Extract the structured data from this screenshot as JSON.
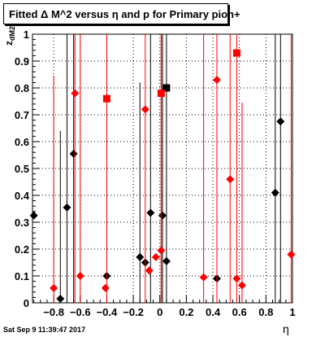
{
  "chart_data": {
    "type": "scatter",
    "title": "Fitted Δ M^2 versus η and p for Primary pion+",
    "xlabel": "η",
    "ylabel": "z_dM2",
    "xlim": [
      -0.96,
      1.0
    ],
    "ylim": [
      0,
      1
    ],
    "grid": true,
    "x_ticks": [
      "−0.8",
      "−0.6",
      "−0.4",
      "−0.2",
      "0",
      "0.2",
      "0.4",
      "0.6",
      "0.8",
      "1"
    ],
    "x_tick_values": [
      -0.8,
      -0.6,
      -0.4,
      -0.2,
      0,
      0.2,
      0.4,
      0.6,
      0.8,
      1
    ],
    "y_ticks": [
      "0",
      "0.1",
      "0.2",
      "0.3",
      "0.4",
      "0.5",
      "0.6",
      "0.7",
      "0.8",
      "0.9",
      "1"
    ],
    "y_tick_values": [
      0,
      0.1,
      0.2,
      0.3,
      0.4,
      0.5,
      0.6,
      0.7,
      0.8,
      0.9,
      1
    ],
    "series": [
      {
        "color": "#000000",
        "points": [
          {
            "x": -0.95,
            "y": 0.325,
            "shape": "diamond"
          },
          {
            "x": -0.75,
            "y": 0.015,
            "shape": "diamond",
            "ylo": 0.0,
            "yhi": 0.64
          },
          {
            "x": -0.7,
            "y": 0.355,
            "shape": "diamond",
            "ylo": 0.0,
            "yhi": 1.0
          },
          {
            "x": -0.65,
            "y": 0.555,
            "shape": "diamond",
            "ylo": 0.0,
            "yhi": 1.0
          },
          {
            "x": -0.4,
            "y": 0.1,
            "shape": "diamond"
          },
          {
            "x": -0.15,
            "y": 0.17,
            "shape": "diamond",
            "ylo": 0.0,
            "yhi": 0.82
          },
          {
            "x": -0.11,
            "y": 0.15,
            "shape": "diamond"
          },
          {
            "x": -0.07,
            "y": 0.335,
            "shape": "diamond",
            "ylo": 0.0,
            "yhi": 1.0
          },
          {
            "x": 0.02,
            "y": 0.325,
            "shape": "diamond",
            "ylo": 0.0,
            "yhi": 1.0
          },
          {
            "x": 0.05,
            "y": 0.155,
            "shape": "diamond"
          },
          {
            "x": 0.05,
            "y": 0.8,
            "shape": "square",
            "ylo": 0.0,
            "yhi": 1.0
          },
          {
            "x": 0.43,
            "y": 0.09,
            "shape": "diamond"
          },
          {
            "x": 0.87,
            "y": 0.41,
            "shape": "diamond",
            "ylo": 0.0,
            "yhi": 1.0
          },
          {
            "x": 0.91,
            "y": 0.675,
            "shape": "diamond",
            "ylo": 0.0,
            "yhi": 1.0
          }
        ]
      },
      {
        "color": "#ff0000",
        "points": [
          {
            "x": -0.8,
            "y": 0.055,
            "shape": "diamond",
            "ylo": 0.0,
            "yhi": 0.845
          },
          {
            "x": -0.64,
            "y": 0.78,
            "shape": "diamond",
            "ylo": 0.0,
            "yhi": 1.0
          },
          {
            "x": -0.6,
            "y": 0.1,
            "shape": "diamond",
            "ylo": 0.0,
            "yhi": 1.0
          },
          {
            "x": -0.41,
            "y": 0.055,
            "shape": "diamond"
          },
          {
            "x": -0.4,
            "y": 0.76,
            "shape": "square",
            "ylo": 0.0,
            "yhi": 1.0
          },
          {
            "x": -0.11,
            "y": 0.72,
            "shape": "diamond",
            "ylo": 0.0,
            "yhi": 1.0
          },
          {
            "x": -0.08,
            "y": 0.12,
            "shape": "diamond"
          },
          {
            "x": -0.03,
            "y": 0.17,
            "shape": "diamond"
          },
          {
            "x": 0.01,
            "y": 0.78,
            "shape": "square",
            "ylo": 0.0,
            "yhi": 1.0
          },
          {
            "x": 0.01,
            "y": 0.195,
            "shape": "diamond",
            "ylo": 0.0,
            "yhi": 1.0
          },
          {
            "x": 0.33,
            "y": 0.095,
            "shape": "diamond",
            "ylo": 0.0,
            "yhi": 1.0
          },
          {
            "x": 0.43,
            "y": 0.83,
            "shape": "diamond",
            "ylo": 0.0,
            "yhi": 1.0
          },
          {
            "x": 0.53,
            "y": 0.46,
            "shape": "diamond",
            "ylo": 0.0,
            "yhi": 1.0
          },
          {
            "x": 0.58,
            "y": 0.09,
            "shape": "diamond"
          },
          {
            "x": 0.58,
            "y": 0.93,
            "shape": "square",
            "ylo": 0.0,
            "yhi": 1.0
          },
          {
            "x": 0.62,
            "y": 0.065,
            "shape": "diamond",
            "ylo": 0.0,
            "yhi": 0.745
          },
          {
            "x": 0.99,
            "y": 0.18,
            "shape": "diamond",
            "ylo": 0.0,
            "yhi": 1.0
          }
        ]
      }
    ]
  },
  "header": {
    "title": "Fitted Δ M^2 versus η and p for Primary pion+"
  },
  "footer": {
    "timestamp": "Sat Sep  9 11:39:47 2017"
  },
  "axes": {
    "x_title": "η",
    "y_title": "z_dM2"
  }
}
